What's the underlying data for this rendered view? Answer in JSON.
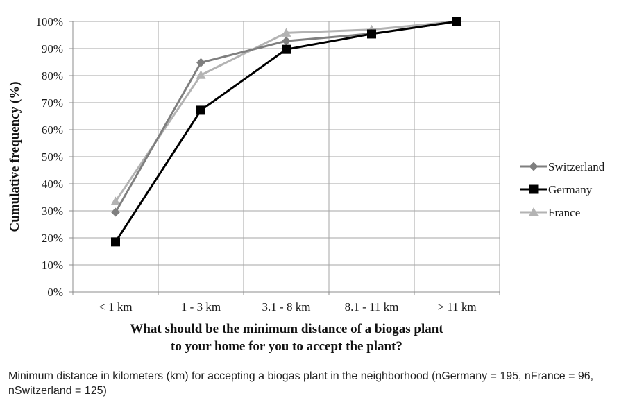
{
  "chart_data": {
    "type": "line",
    "categories": [
      "< 1 km",
      "1 - 3 km",
      "3.1 - 8 km",
      "8.1 - 11 km",
      "> 11 km"
    ],
    "series": [
      {
        "name": "Switzerland",
        "values": [
          29.5,
          84.8,
          92.8,
          95.5,
          100
        ],
        "color": "#7f7f7f",
        "marker": "diamond"
      },
      {
        "name": "Germany",
        "values": [
          18.5,
          67.2,
          89.7,
          95.4,
          100
        ],
        "color": "#000000",
        "marker": "square"
      },
      {
        "name": "France",
        "values": [
          33.5,
          80.2,
          95.8,
          97.0,
          100
        ],
        "color": "#b3b3b3",
        "marker": "triangle"
      }
    ],
    "ylim": [
      0,
      100
    ],
    "yticks": [
      "0%",
      "10%",
      "20%",
      "30%",
      "40%",
      "50%",
      "60%",
      "70%",
      "80%",
      "90%",
      "100%"
    ],
    "ylabel": "Cumulative frequency (%)",
    "xlabel_lines": [
      "What should be the minimum distance of a biogas plant",
      "to your home for you to accept the plant?"
    ],
    "grid": true,
    "legend_position": "right"
  },
  "caption": "Minimum distance in kilometers (km) for accepting a biogas plant in the neighborhood (nGermany = 195, nFrance = 96, nSwitzerland = 125)"
}
